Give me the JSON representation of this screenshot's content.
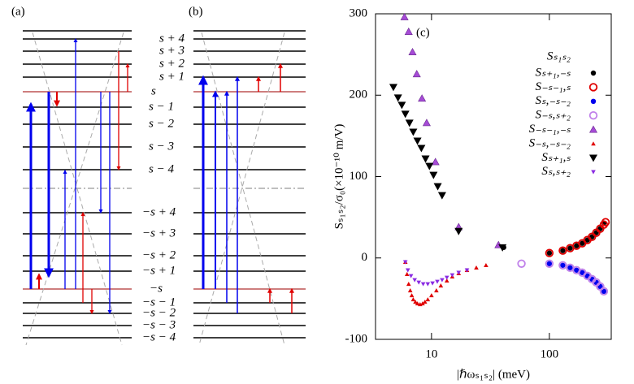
{
  "panel_a": {
    "label": "(a)"
  },
  "panel_b": {
    "label": "(b)"
  },
  "level_labels": [
    "s + 4",
    "s + 3",
    "s + 2",
    "s + 1",
    "s",
    "s − 1",
    "s − 2",
    "s − 3",
    "s − 4",
    "−s + 4",
    "−s + 3",
    "−s + 2",
    "−s + 1",
    "−s",
    "−s − 1",
    "−s − 2",
    "−s − 3",
    "−s − 4"
  ],
  "chart_data": {
    "type": "scatter",
    "panel_label": "(c)",
    "x_label": "|ℏωₛ₁ₛ₂| (meV)",
    "y_label": "Sₛ₁ₛ₂/σ₀(×10⁻¹⁰ m/V)",
    "log_x": true,
    "xlim": [
      3.35,
      335
    ],
    "xticks": [
      10,
      100
    ],
    "ylim": [
      -100,
      300
    ],
    "yticks": [
      -100,
      0,
      100,
      200,
      300
    ],
    "legend_title": "Sₛ₁ₛ₂",
    "series": [
      {
        "name": "Sₛ₊₁,₋ₛ",
        "color": "#000000",
        "marker": "dot",
        "x": [
          41,
          100,
          130,
          150,
          170,
          190,
          210,
          230,
          250,
          270,
          290
        ],
        "values": [
          13,
          6,
          9,
          12,
          15,
          18,
          22,
          26,
          31,
          36,
          43
        ]
      },
      {
        "name": "S₋ₛ₋₁,ₛ",
        "color": "#e00000",
        "marker": "circle",
        "x": [
          100,
          130,
          150,
          170,
          190,
          210,
          230,
          250,
          270,
          290,
          300
        ],
        "values": [
          6,
          9,
          12,
          15,
          18,
          22,
          26,
          31,
          36,
          41,
          44
        ]
      },
      {
        "name": "Sₛ,₋ₛ₋₂",
        "color": "#0000ee",
        "marker": "dot",
        "x": [
          100,
          130,
          150,
          170,
          190,
          210,
          230,
          250,
          270,
          290
        ],
        "values": [
          -7,
          -9,
          -12,
          -15,
          -18,
          -22,
          -26,
          -30,
          -35,
          -41
        ]
      },
      {
        "name": "S₋ₛ,ₛ₊₂",
        "color": "#c080ea",
        "marker": "circle",
        "x": [
          58,
          100,
          130,
          150,
          170,
          190,
          210,
          230,
          250,
          270,
          290
        ],
        "values": [
          -7,
          -7,
          -9,
          -12,
          -15,
          -18,
          -22,
          -26,
          -30,
          -35,
          -41
        ]
      },
      {
        "name": "S₋ₛ₋₁,₋ₛ",
        "color": "#a64bd6",
        "marker": "triangle-up",
        "x": [
          5.9,
          6.4,
          6.9,
          7.5,
          8.3,
          9.1,
          10.8,
          17,
          37
        ],
        "values": [
          296,
          278,
          253,
          226,
          196,
          166,
          118,
          38,
          16
        ]
      },
      {
        "name": "S₋ₛ,₋ₛ₋₂",
        "color": "#e00000",
        "marker": "small-triangle-up",
        "x": [
          6.0,
          6.2,
          6.4,
          6.6,
          6.8,
          7.0,
          7.3,
          7.6,
          8.0,
          8.4,
          8.8,
          9.3,
          10,
          11,
          12,
          13.5,
          15,
          17,
          20,
          24,
          29
        ],
        "values": [
          -5,
          -20,
          -32,
          -40,
          -46,
          -51,
          -54,
          -56,
          -57,
          -56,
          -54,
          -51,
          -46,
          -40,
          -34,
          -28,
          -23,
          -19,
          -15,
          -12,
          -9
        ]
      },
      {
        "name": "Sₛ₊₁,ₛ",
        "color": "#000000",
        "marker": "triangle-down",
        "x": [
          4.75,
          5.2,
          5.6,
          6.0,
          6.5,
          7.0,
          7.6,
          8.2,
          8.9,
          9.6,
          10.4,
          11.3,
          12.3,
          17,
          40
        ],
        "values": [
          210,
          197,
          188,
          177,
          166,
          155,
          144,
          135,
          122,
          113,
          102,
          88,
          77,
          33,
          13
        ]
      },
      {
        "name": "Sₛ,ₛ₊₂",
        "color": "#8a2be2",
        "marker": "small-triangle-down",
        "x": [
          6.0,
          6.3,
          6.7,
          7.2,
          7.8,
          8.5,
          9.3,
          10.2,
          11.2,
          12.3,
          13.5,
          15,
          17,
          20
        ],
        "values": [
          -5,
          -15,
          -22,
          -27,
          -30,
          -32,
          -32,
          -31,
          -29,
          -27,
          -24,
          -21,
          -18,
          -15
        ]
      }
    ]
  }
}
